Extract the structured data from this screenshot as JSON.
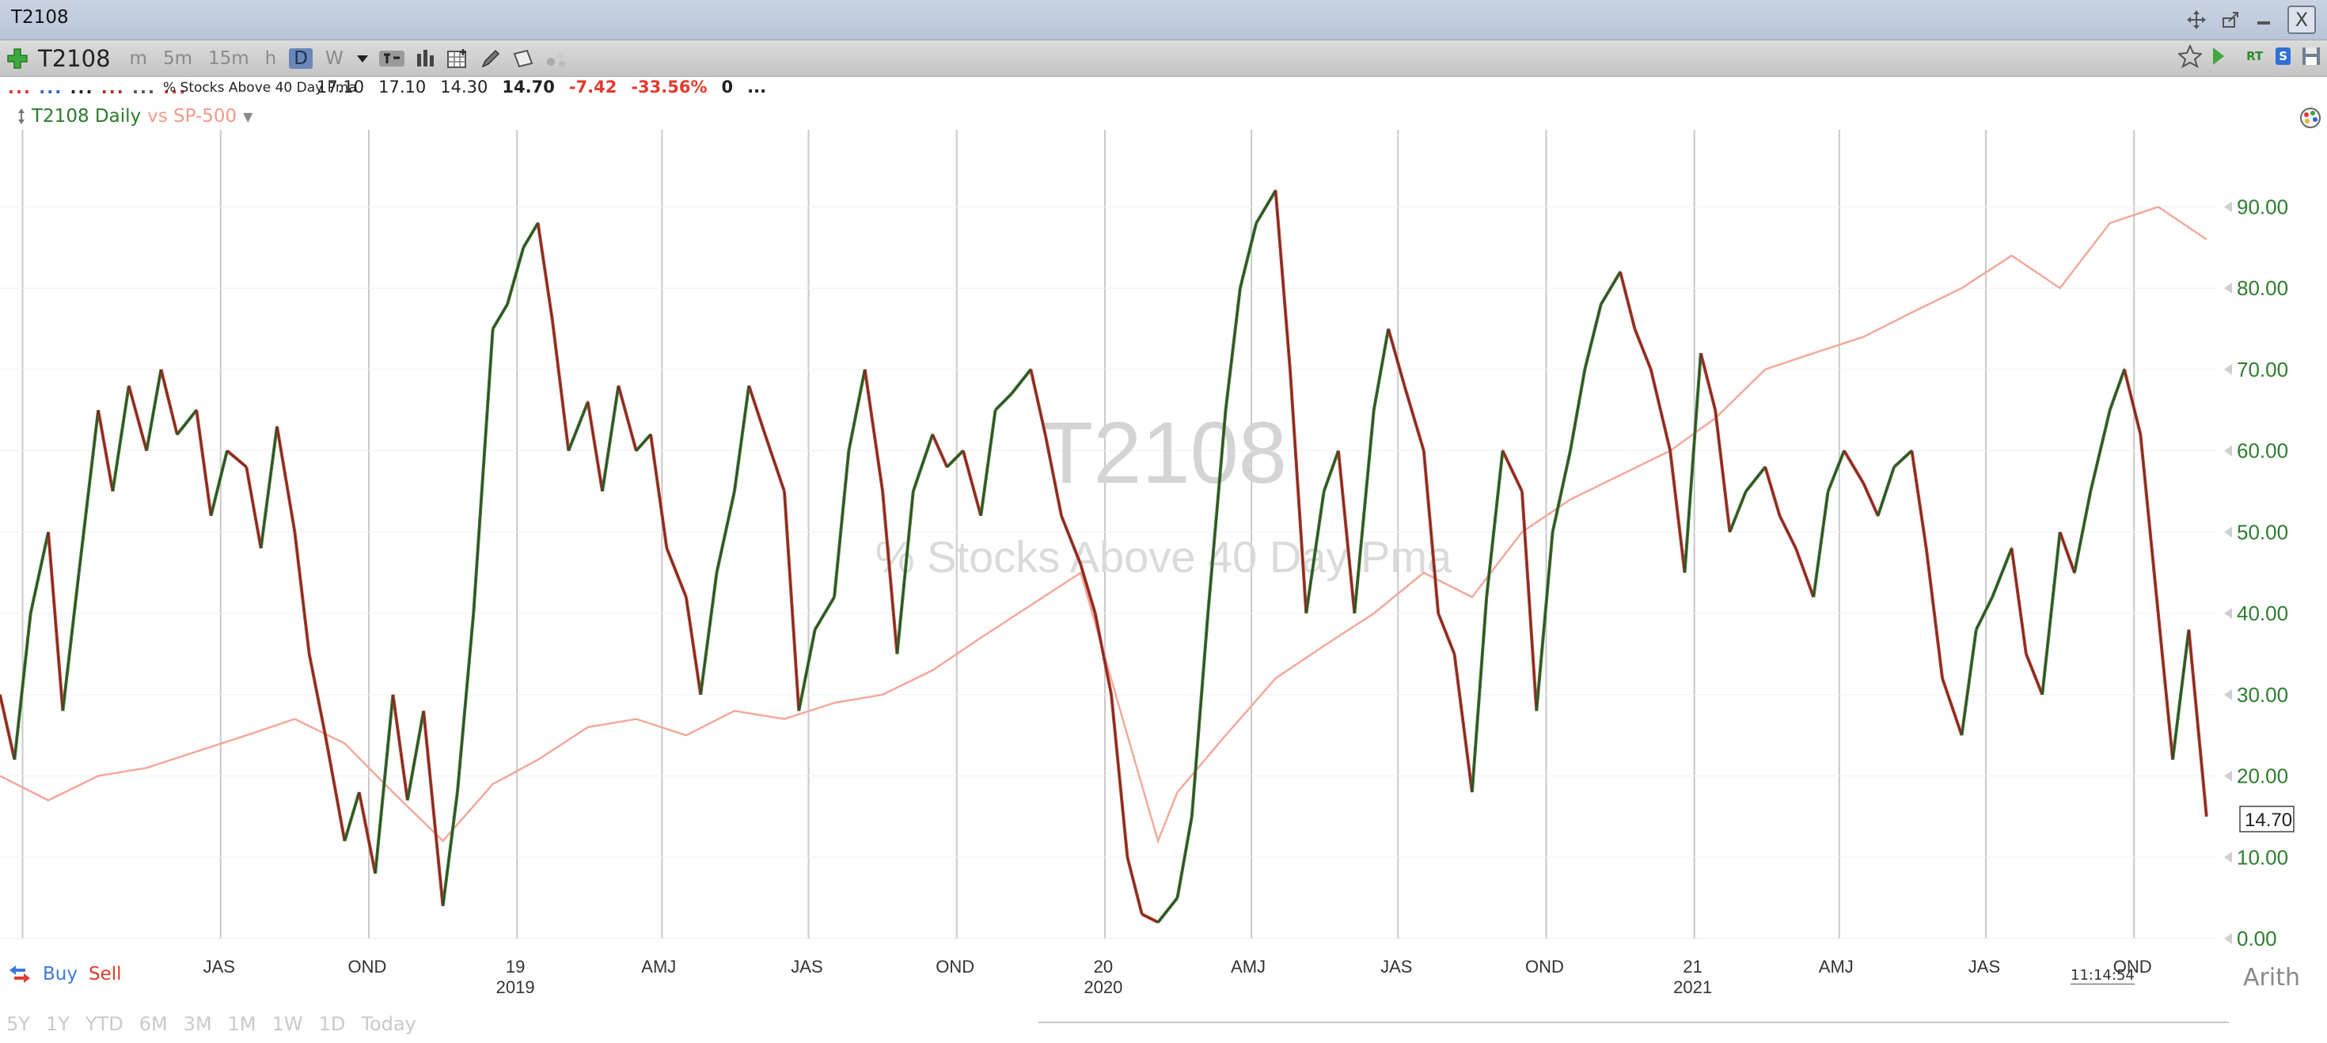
{
  "window": {
    "title": "T2108"
  },
  "toolbar": {
    "symbol": "T2108",
    "intervals": [
      {
        "label": "m",
        "active": false
      },
      {
        "label": "5m",
        "active": false
      },
      {
        "label": "15m",
        "active": false
      },
      {
        "label": "h",
        "active": false
      },
      {
        "label": "D",
        "active": true
      },
      {
        "label": "W",
        "active": false
      }
    ],
    "rt_label": "RT",
    "s_label": "S"
  },
  "infobar": {
    "indicator_name": "% Stocks Above 40 Day Pma",
    "open": "17.10",
    "high": "17.10",
    "low": "14.30",
    "last": "14.70",
    "change": "-7.42",
    "change_pct": "-33.56%",
    "volume": "0",
    "more": "..."
  },
  "legend": {
    "main": "T2108 Daily",
    "compare": "vs SP-500"
  },
  "watermark": {
    "symbol": "T2108",
    "name": "% Stocks Above 40 Day Pma"
  },
  "footer": {
    "buy_label": "Buy",
    "sell_label": "Sell",
    "time_ranges": [
      "5Y",
      "1Y",
      "YTD",
      "6M",
      "3M",
      "1M",
      "1W",
      "1D",
      "Today"
    ],
    "scale_mode": "Arith",
    "clock": "11:14:54"
  },
  "colors": {
    "t2108_line": "#4b2f24",
    "rising_segment": "#2f7d2f",
    "falling_segment": "#c0392b",
    "spx_line": "#f4a89b",
    "axis_label": "#2f7d2f",
    "negative": "#e23b2d"
  },
  "chart_data": {
    "type": "line",
    "x_axis": {
      "months": [
        "JAS",
        "OND",
        "19",
        "AMJ",
        "JAS",
        "OND",
        "20",
        "AMJ",
        "JAS",
        "OND",
        "21",
        "AMJ",
        "JAS",
        "OND"
      ],
      "years": [
        "2019",
        "2020",
        "2021"
      ]
    },
    "y_axis": {
      "ticks": [
        "0.00",
        "10.00",
        "20.00",
        "30.00",
        "40.00",
        "50.00",
        "60.00",
        "70.00",
        "80.00",
        "90.00"
      ],
      "range": [
        0,
        95
      ],
      "side": "right"
    },
    "last_value_label": "14.70",
    "x_range": [
      "2018-04",
      "2021-12"
    ],
    "series": [
      {
        "name": "T2108 Daily",
        "points": [
          [
            "2018-04-01",
            30
          ],
          [
            "2018-04-10",
            22
          ],
          [
            "2018-04-20",
            40
          ],
          [
            "2018-05-01",
            50
          ],
          [
            "2018-05-10",
            28
          ],
          [
            "2018-05-20",
            45
          ],
          [
            "2018-06-01",
            65
          ],
          [
            "2018-06-10",
            55
          ],
          [
            "2018-06-20",
            68
          ],
          [
            "2018-07-01",
            60
          ],
          [
            "2018-07-10",
            70
          ],
          [
            "2018-07-20",
            62
          ],
          [
            "2018-08-01",
            65
          ],
          [
            "2018-08-10",
            52
          ],
          [
            "2018-08-20",
            60
          ],
          [
            "2018-09-01",
            58
          ],
          [
            "2018-09-10",
            48
          ],
          [
            "2018-09-20",
            63
          ],
          [
            "2018-10-01",
            50
          ],
          [
            "2018-10-10",
            35
          ],
          [
            "2018-10-20",
            25
          ],
          [
            "2018-11-01",
            12
          ],
          [
            "2018-11-10",
            18
          ],
          [
            "2018-11-20",
            8
          ],
          [
            "2018-12-01",
            30
          ],
          [
            "2018-12-10",
            17
          ],
          [
            "2018-12-20",
            28
          ],
          [
            "2019-01-01",
            4
          ],
          [
            "2019-01-10",
            18
          ],
          [
            "2019-01-20",
            40
          ],
          [
            "2019-02-01",
            75
          ],
          [
            "2019-02-10",
            78
          ],
          [
            "2019-02-20",
            85
          ],
          [
            "2019-03-01",
            88
          ],
          [
            "2019-03-10",
            76
          ],
          [
            "2019-03-20",
            60
          ],
          [
            "2019-04-01",
            66
          ],
          [
            "2019-04-10",
            55
          ],
          [
            "2019-04-20",
            68
          ],
          [
            "2019-05-01",
            60
          ],
          [
            "2019-05-10",
            62
          ],
          [
            "2019-05-20",
            48
          ],
          [
            "2019-06-01",
            42
          ],
          [
            "2019-06-10",
            30
          ],
          [
            "2019-06-20",
            45
          ],
          [
            "2019-07-01",
            55
          ],
          [
            "2019-07-10",
            68
          ],
          [
            "2019-07-20",
            62
          ],
          [
            "2019-08-01",
            55
          ],
          [
            "2019-08-10",
            28
          ],
          [
            "2019-08-20",
            38
          ],
          [
            "2019-09-01",
            42
          ],
          [
            "2019-09-10",
            60
          ],
          [
            "2019-09-20",
            70
          ],
          [
            "2019-10-01",
            55
          ],
          [
            "2019-10-10",
            35
          ],
          [
            "2019-10-20",
            55
          ],
          [
            "2019-11-01",
            62
          ],
          [
            "2019-11-10",
            58
          ],
          [
            "2019-11-20",
            60
          ],
          [
            "2019-12-01",
            52
          ],
          [
            "2019-12-10",
            65
          ],
          [
            "2019-12-20",
            67
          ],
          [
            "2020-01-01",
            70
          ],
          [
            "2020-01-10",
            62
          ],
          [
            "2020-01-20",
            52
          ],
          [
            "2020-02-01",
            46
          ],
          [
            "2020-02-10",
            40
          ],
          [
            "2020-02-20",
            30
          ],
          [
            "2020-03-01",
            10
          ],
          [
            "2020-03-10",
            3
          ],
          [
            "2020-03-20",
            2
          ],
          [
            "2020-04-01",
            5
          ],
          [
            "2020-04-10",
            15
          ],
          [
            "2020-04-20",
            40
          ],
          [
            "2020-05-01",
            65
          ],
          [
            "2020-05-10",
            80
          ],
          [
            "2020-05-20",
            88
          ],
          [
            "2020-06-01",
            92
          ],
          [
            "2020-06-10",
            70
          ],
          [
            "2020-06-20",
            40
          ],
          [
            "2020-07-01",
            55
          ],
          [
            "2020-07-10",
            60
          ],
          [
            "2020-07-20",
            40
          ],
          [
            "2020-08-01",
            65
          ],
          [
            "2020-08-10",
            75
          ],
          [
            "2020-08-20",
            68
          ],
          [
            "2020-09-01",
            60
          ],
          [
            "2020-09-10",
            40
          ],
          [
            "2020-09-20",
            35
          ],
          [
            "2020-10-01",
            18
          ],
          [
            "2020-10-10",
            42
          ],
          [
            "2020-10-20",
            60
          ],
          [
            "2020-11-01",
            55
          ],
          [
            "2020-11-10",
            28
          ],
          [
            "2020-11-20",
            50
          ],
          [
            "2020-12-01",
            60
          ],
          [
            "2020-12-10",
            70
          ],
          [
            "2020-12-20",
            78
          ],
          [
            "2021-01-01",
            82
          ],
          [
            "2021-01-10",
            75
          ],
          [
            "2021-01-20",
            70
          ],
          [
            "2021-02-01",
            60
          ],
          [
            "2021-02-10",
            45
          ],
          [
            "2021-02-20",
            72
          ],
          [
            "2021-03-01",
            65
          ],
          [
            "2021-03-10",
            50
          ],
          [
            "2021-03-20",
            55
          ],
          [
            "2021-04-01",
            58
          ],
          [
            "2021-04-10",
            52
          ],
          [
            "2021-04-20",
            48
          ],
          [
            "2021-05-01",
            42
          ],
          [
            "2021-05-10",
            55
          ],
          [
            "2021-05-20",
            60
          ],
          [
            "2021-06-01",
            56
          ],
          [
            "2021-06-10",
            52
          ],
          [
            "2021-06-20",
            58
          ],
          [
            "2021-07-01",
            60
          ],
          [
            "2021-07-10",
            48
          ],
          [
            "2021-07-20",
            32
          ],
          [
            "2021-08-01",
            25
          ],
          [
            "2021-08-10",
            38
          ],
          [
            "2021-08-20",
            42
          ],
          [
            "2021-09-01",
            48
          ],
          [
            "2021-09-10",
            35
          ],
          [
            "2021-09-20",
            30
          ],
          [
            "2021-10-01",
            50
          ],
          [
            "2021-10-10",
            45
          ],
          [
            "2021-10-20",
            55
          ],
          [
            "2021-11-01",
            65
          ],
          [
            "2021-11-10",
            70
          ],
          [
            "2021-11-20",
            62
          ],
          [
            "2021-12-01",
            40
          ],
          [
            "2021-12-10",
            22
          ],
          [
            "2021-12-20",
            38
          ],
          [
            "2021-12-31",
            15
          ]
        ]
      },
      {
        "name": "SP-500",
        "points": [
          [
            "2018-04-01",
            20
          ],
          [
            "2018-05-01",
            17
          ],
          [
            "2018-06-01",
            20
          ],
          [
            "2018-07-01",
            21
          ],
          [
            "2018-08-01",
            23
          ],
          [
            "2018-09-01",
            25
          ],
          [
            "2018-10-01",
            27
          ],
          [
            "2018-11-01",
            24
          ],
          [
            "2018-12-01",
            18
          ],
          [
            "2019-01-01",
            12
          ],
          [
            "2019-02-01",
            19
          ],
          [
            "2019-03-01",
            22
          ],
          [
            "2019-04-01",
            26
          ],
          [
            "2019-05-01",
            27
          ],
          [
            "2019-06-01",
            25
          ],
          [
            "2019-07-01",
            28
          ],
          [
            "2019-08-01",
            27
          ],
          [
            "2019-09-01",
            29
          ],
          [
            "2019-10-01",
            30
          ],
          [
            "2019-11-01",
            33
          ],
          [
            "2019-12-01",
            37
          ],
          [
            "2020-01-01",
            41
          ],
          [
            "2020-02-01",
            45
          ],
          [
            "2020-03-01",
            25
          ],
          [
            "2020-03-20",
            12
          ],
          [
            "2020-04-01",
            18
          ],
          [
            "2020-05-01",
            25
          ],
          [
            "2020-06-01",
            32
          ],
          [
            "2020-07-01",
            36
          ],
          [
            "2020-08-01",
            40
          ],
          [
            "2020-09-01",
            45
          ],
          [
            "2020-10-01",
            42
          ],
          [
            "2020-11-01",
            50
          ],
          [
            "2020-12-01",
            54
          ],
          [
            "2021-01-01",
            57
          ],
          [
            "2021-02-01",
            60
          ],
          [
            "2021-03-01",
            64
          ],
          [
            "2021-04-01",
            70
          ],
          [
            "2021-05-01",
            72
          ],
          [
            "2021-06-01",
            74
          ],
          [
            "2021-07-01",
            77
          ],
          [
            "2021-08-01",
            80
          ],
          [
            "2021-09-01",
            84
          ],
          [
            "2021-10-01",
            80
          ],
          [
            "2021-11-01",
            88
          ],
          [
            "2021-12-01",
            90
          ],
          [
            "2021-12-31",
            86
          ]
        ]
      }
    ],
    "grid": "vertical lines at quarters"
  }
}
